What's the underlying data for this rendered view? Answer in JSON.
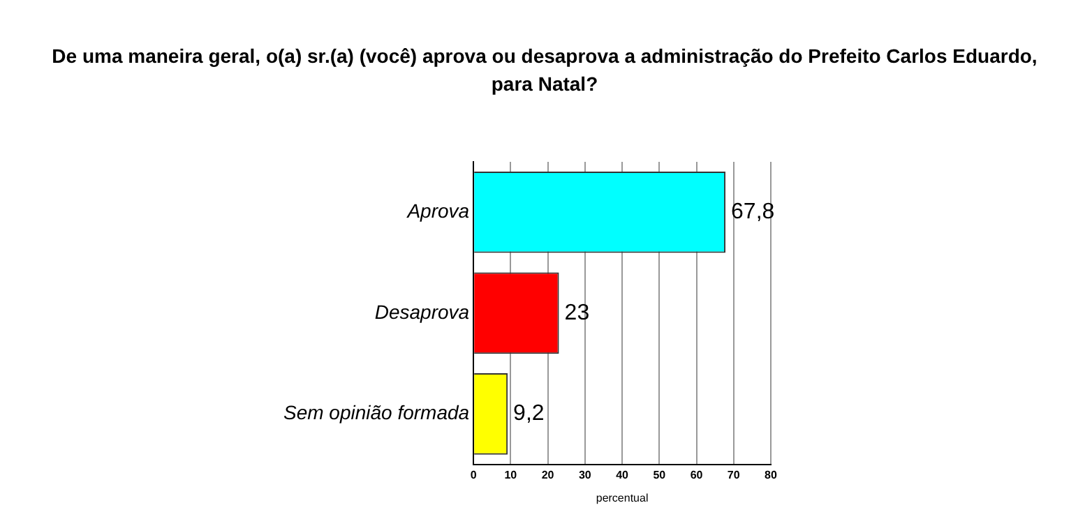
{
  "chart_data": {
    "type": "bar",
    "orientation": "horizontal",
    "title": "De uma maneira geral, o(a) sr.(a) (você) aprova ou desaprova a administração do Prefeito Carlos Eduardo, para Natal?",
    "categories": [
      "Aprova",
      "Desaprova",
      "Sem opinião formada"
    ],
    "values": [
      67.8,
      23,
      9.2
    ],
    "value_labels": [
      "67,8",
      "23",
      "9,2"
    ],
    "colors": [
      "#00ffff",
      "#ff0000",
      "#ffff00"
    ],
    "xlim": [
      0,
      80
    ],
    "xticks": [
      0,
      10,
      20,
      30,
      40,
      50,
      60,
      70,
      80
    ],
    "xlabel": "percentual",
    "grid": "x",
    "legend": false
  }
}
